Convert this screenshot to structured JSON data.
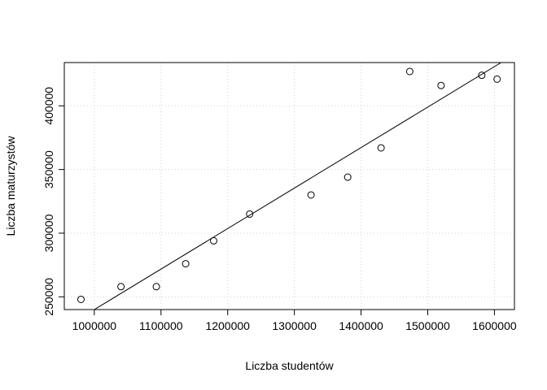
{
  "chart_data": {
    "type": "scatter",
    "title": "",
    "xlabel": "Liczba studentów",
    "ylabel": "Liczba maturzystów",
    "xlim": [
      955000,
      1630000
    ],
    "ylim": [
      240000,
      434000
    ],
    "x_ticks": [
      1000000,
      1100000,
      1200000,
      1300000,
      1400000,
      1500000,
      1600000
    ],
    "x_tick_labels": [
      "1000000",
      "1100000",
      "1200000",
      "1300000",
      "1400000",
      "1500000",
      "1600000"
    ],
    "y_ticks": [
      250000,
      300000,
      350000,
      400000
    ],
    "y_tick_labels": [
      "250000",
      "300000",
      "350000",
      "400000"
    ],
    "grid": true,
    "points": [
      {
        "x": 980000,
        "y": 248000
      },
      {
        "x": 1040000,
        "y": 258000
      },
      {
        "x": 1093000,
        "y": 258000
      },
      {
        "x": 1137000,
        "y": 276000
      },
      {
        "x": 1179000,
        "y": 294000
      },
      {
        "x": 1233000,
        "y": 315000
      },
      {
        "x": 1325000,
        "y": 330000
      },
      {
        "x": 1380000,
        "y": 344000
      },
      {
        "x": 1430000,
        "y": 367000
      },
      {
        "x": 1473000,
        "y": 427000
      },
      {
        "x": 1520000,
        "y": 416000
      },
      {
        "x": 1581000,
        "y": 424000
      },
      {
        "x": 1604000,
        "y": 421000
      }
    ],
    "fit_line": {
      "x": [
        1000000,
        1610000
      ],
      "y": [
        240000,
        434000
      ]
    }
  }
}
